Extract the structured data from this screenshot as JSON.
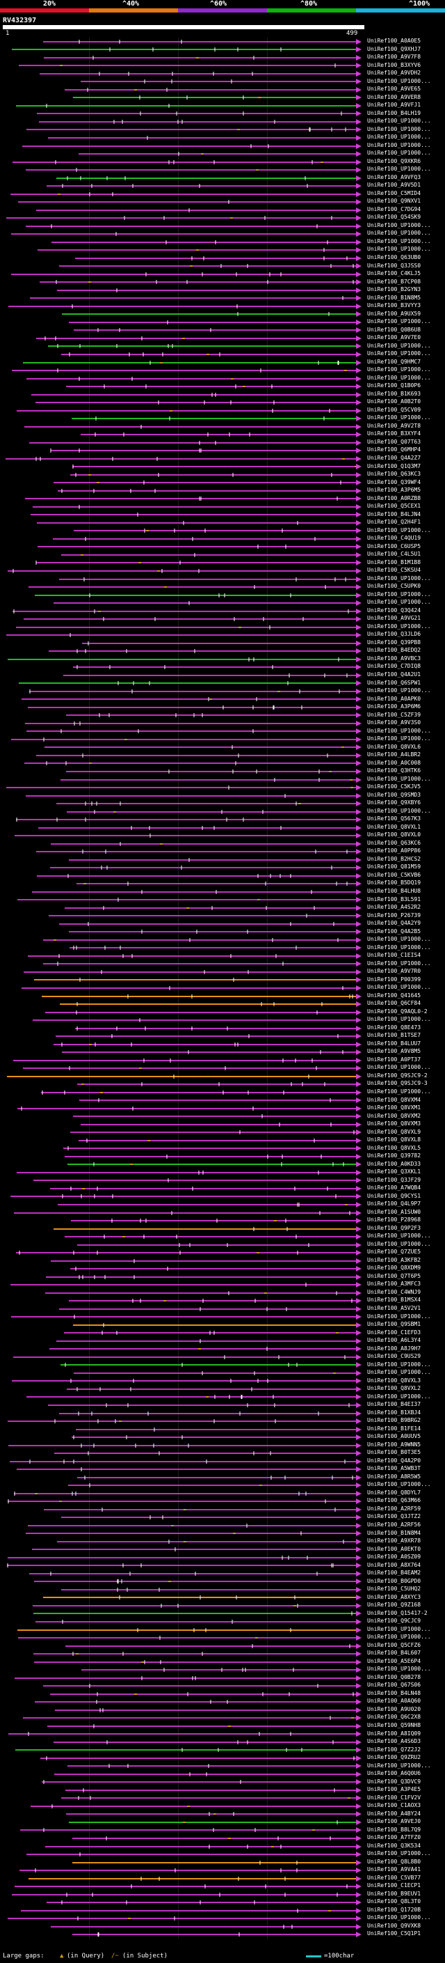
{
  "query_id": "RV432397",
  "coord_start": "1",
  "coord_end": "499",
  "identity_scale": {
    "labels": [
      "20%",
      "^40%",
      "^60%",
      "^80%",
      "^100%"
    ],
    "colors": [
      "#e0102a",
      "#e07a10",
      "#8e2ac8",
      "#10b010",
      "#18b4d8"
    ]
  },
  "hit_colors": {
    "magenta": "#c030c0",
    "green": "#22bb22",
    "orange": "#e89018",
    "gap": "#c8a000",
    "node": "#ffffff",
    "arrow": "#d040d0"
  },
  "legend": {
    "large_gaps": "Large gaps:",
    "query_gap": "(in Query)",
    "subject_gap": "(in Subject)",
    "scale": "=100char"
  },
  "hits": [
    {
      "label": "UniRef100_A0A0E5",
      "color": "magenta"
    },
    {
      "label": "UniRef100_Q9XHJ7",
      "color": "green"
    },
    {
      "label": "UniRef100_A9V7F8",
      "color": "magenta"
    },
    {
      "label": "UniRef100_B3XYV6",
      "color": "magenta"
    },
    {
      "label": "UniRef100_A9VDH2",
      "color": "magenta"
    },
    {
      "label": "UniRef100_UP1000...",
      "color": "magenta"
    },
    {
      "label": "UniRef100_A9VE65",
      "color": "magenta"
    },
    {
      "label": "UniRef100_A9VER8",
      "color": "green"
    },
    {
      "label": "UniRef100_A9VFJ1",
      "color": "green"
    },
    {
      "label": "UniRef100_B4LH19",
      "color": "magenta"
    },
    {
      "label": "UniRef100_UP1000...",
      "color": "magenta"
    },
    {
      "label": "UniRef100_UP1000...",
      "color": "magenta"
    },
    {
      "label": "UniRef100_UP1000...",
      "color": "magenta"
    },
    {
      "label": "UniRef100_UP1000...",
      "color": "magenta"
    },
    {
      "label": "UniRef100_UP1000...",
      "color": "magenta"
    },
    {
      "label": "UniRef100_Q9XKR6",
      "color": "magenta"
    },
    {
      "label": "UniRef100_UP1000...",
      "color": "magenta"
    },
    {
      "label": "UniRef100_A9VFQ3",
      "color": "green"
    },
    {
      "label": "UniRef100_A9V5D1",
      "color": "magenta"
    },
    {
      "label": "UniRef100_C5MID4",
      "color": "magenta"
    },
    {
      "label": "UniRef100_Q9NXV1",
      "color": "magenta"
    },
    {
      "label": "UniRef100_C7DG94",
      "color": "magenta"
    },
    {
      "label": "UniRef100_Q54SK9",
      "color": "magenta"
    },
    {
      "label": "UniRef100_UP1000...",
      "color": "magenta"
    },
    {
      "label": "UniRef100_UP1000...",
      "color": "magenta"
    },
    {
      "label": "UniRef100_UP1000...",
      "color": "magenta"
    },
    {
      "label": "UniRef100_UP1000...",
      "color": "magenta"
    },
    {
      "label": "UniRef100_Q63UB0",
      "color": "magenta"
    },
    {
      "label": "UniRef100_Q3JSS0",
      "color": "magenta"
    },
    {
      "label": "UniRef100_C4KLJ5",
      "color": "magenta"
    },
    {
      "label": "UniRef100_B7CP08",
      "color": "magenta"
    },
    {
      "label": "UniRef100_B2GYN3",
      "color": "magenta"
    },
    {
      "label": "UniRef100_B1N8M5",
      "color": "magenta"
    },
    {
      "label": "UniRef100_B3VYY3",
      "color": "magenta"
    },
    {
      "label": "UniRef100_A9UX59",
      "color": "green"
    },
    {
      "label": "UniRef100_UP1000...",
      "color": "magenta"
    },
    {
      "label": "UniRef100_Q0B6U8",
      "color": "magenta"
    },
    {
      "label": "UniRef100_A9V7E0",
      "color": "magenta"
    },
    {
      "label": "UniRef100_UP1000...",
      "color": "green"
    },
    {
      "label": "UniRef100_UP1000...",
      "color": "magenta"
    },
    {
      "label": "UniRef100_Q9HMC7",
      "color": "green"
    },
    {
      "label": "UniRef100_UP1000...",
      "color": "magenta"
    },
    {
      "label": "UniRef100_UP1000...",
      "color": "magenta"
    },
    {
      "label": "UniRef100_Q1B0P6",
      "color": "magenta"
    },
    {
      "label": "UniRef100_B1K693",
      "color": "magenta"
    },
    {
      "label": "UniRef100_A0B2T0",
      "color": "magenta"
    },
    {
      "label": "UniRef100_Q5CV09",
      "color": "magenta"
    },
    {
      "label": "UniRef100_UP1000...",
      "color": "green"
    },
    {
      "label": "UniRef100_A9V2T8",
      "color": "magenta"
    },
    {
      "label": "UniRef100_B3XYF4",
      "color": "magenta"
    },
    {
      "label": "UniRef100_Q07T63",
      "color": "magenta"
    },
    {
      "label": "UniRef100_Q6MHP4",
      "color": "magenta"
    },
    {
      "label": "UniRef100_Q4A2Z7",
      "color": "magenta"
    },
    {
      "label": "UniRef100_Q1Q3M7",
      "color": "magenta"
    },
    {
      "label": "UniRef100_Q63KC3",
      "color": "magenta"
    },
    {
      "label": "UniRef100_Q39WF4",
      "color": "magenta"
    },
    {
      "label": "UniRef100_A3P6M5",
      "color": "magenta"
    },
    {
      "label": "UniRef100_A0RZB8",
      "color": "magenta"
    },
    {
      "label": "UniRef100_Q5CEX1",
      "color": "magenta"
    },
    {
      "label": "UniRef100_B4LJN4",
      "color": "magenta"
    },
    {
      "label": "UniRef100_Q2H4F1",
      "color": "magenta"
    },
    {
      "label": "UniRef100_UP1000...",
      "color": "magenta"
    },
    {
      "label": "UniRef100_C4QU19",
      "color": "magenta"
    },
    {
      "label": "UniRef100_C6USP5",
      "color": "magenta"
    },
    {
      "label": "UniRef100_C4L5U1",
      "color": "magenta"
    },
    {
      "label": "UniRef100_B1M1B8",
      "color": "magenta"
    },
    {
      "label": "UniRef100_C5KSU4",
      "color": "magenta"
    },
    {
      "label": "UniRef100_UP1000...",
      "color": "magenta"
    },
    {
      "label": "UniRef100_C5UPK0",
      "color": "magenta"
    },
    {
      "label": "UniRef100_UP1000...",
      "color": "green"
    },
    {
      "label": "UniRef100_UP1000...",
      "color": "magenta"
    },
    {
      "label": "UniRef100_Q3Q424",
      "color": "magenta"
    },
    {
      "label": "UniRef100_A9VG21",
      "color": "magenta"
    },
    {
      "label": "UniRef100_UP1000...",
      "color": "magenta"
    },
    {
      "label": "UniRef100_Q3JLD6",
      "color": "magenta"
    },
    {
      "label": "UniRef100_Q39PB8",
      "color": "magenta"
    },
    {
      "label": "UniRef100_B4EDQ2",
      "color": "magenta"
    },
    {
      "label": "UniRef100_A9VBC3",
      "color": "green"
    },
    {
      "label": "UniRef100_C7DIQ8",
      "color": "magenta"
    },
    {
      "label": "UniRef100_Q4A2U1",
      "color": "magenta"
    },
    {
      "label": "UniRef100_Q6SPW1",
      "color": "green"
    },
    {
      "label": "UniRef100_UP1000...",
      "color": "magenta"
    },
    {
      "label": "UniRef100_A0APK0",
      "color": "magenta"
    },
    {
      "label": "UniRef100_A3P6M6",
      "color": "magenta"
    },
    {
      "label": "UniRef100_C5ZF39",
      "color": "magenta"
    },
    {
      "label": "UniRef100_A9V3S0",
      "color": "magenta"
    },
    {
      "label": "UniRef100_UP1000...",
      "color": "magenta"
    },
    {
      "label": "UniRef100_UP1000...",
      "color": "magenta"
    },
    {
      "label": "UniRef100_Q8VXL6",
      "color": "magenta"
    },
    {
      "label": "UniRef100_A4LBR2",
      "color": "magenta"
    },
    {
      "label": "UniRef100_A0C008",
      "color": "magenta"
    },
    {
      "label": "UniRef100_Q3HTK6",
      "color": "magenta"
    },
    {
      "label": "UniRef100_UP1000...",
      "color": "magenta"
    },
    {
      "label": "UniRef100_C5KJV5",
      "color": "magenta"
    },
    {
      "label": "UniRef100_Q9SMD3",
      "color": "magenta"
    },
    {
      "label": "UniRef100_Q9XBY6",
      "color": "magenta"
    },
    {
      "label": "UniRef100_UP1000...",
      "color": "magenta"
    },
    {
      "label": "UniRef100_Q567K3",
      "color": "magenta"
    },
    {
      "label": "UniRef100_Q8VXL1",
      "color": "magenta"
    },
    {
      "label": "UniRef100_Q8VXL0",
      "color": "magenta"
    },
    {
      "label": "UniRef100_Q63KC6",
      "color": "magenta"
    },
    {
      "label": "UniRef100_A0PP86",
      "color": "magenta"
    },
    {
      "label": "UniRef100_B2HCS2",
      "color": "magenta"
    },
    {
      "label": "UniRef100_Q81M59",
      "color": "magenta"
    },
    {
      "label": "UniRef100_C5KVB6",
      "color": "magenta"
    },
    {
      "label": "UniRef100_B5DQ19",
      "color": "magenta"
    },
    {
      "label": "UniRef100_B4LHU8",
      "color": "magenta"
    },
    {
      "label": "UniRef100_B3L591",
      "color": "magenta"
    },
    {
      "label": "UniRef100_A4S2R2",
      "color": "magenta"
    },
    {
      "label": "UniRef100_P26739",
      "color": "magenta"
    },
    {
      "label": "UniRef100_Q4A2Y9",
      "color": "magenta"
    },
    {
      "label": "UniRef100_Q4A2B5",
      "color": "magenta"
    },
    {
      "label": "UniRef100_UP1000...",
      "color": "magenta"
    },
    {
      "label": "UniRef100_UP1000...",
      "color": "magenta"
    },
    {
      "label": "UniRef100_C1EIS4",
      "color": "magenta"
    },
    {
      "label": "UniRef100_UP1000...",
      "color": "magenta"
    },
    {
      "label": "UniRef100_A9V7R0",
      "color": "magenta"
    },
    {
      "label": "UniRef100_P00399",
      "color": "orange"
    },
    {
      "label": "UniRef100_UP1000...",
      "color": "magenta"
    },
    {
      "label": "UniRef100_Q41645",
      "color": "orange"
    },
    {
      "label": "UniRef100_Q6CF84",
      "color": "orange"
    },
    {
      "label": "UniRef100_Q9AQL0-2",
      "color": "magenta"
    },
    {
      "label": "UniRef100_UP1000...",
      "color": "magenta"
    },
    {
      "label": "UniRef100_Q8E473",
      "color": "magenta"
    },
    {
      "label": "UniRef100_B1TSE7",
      "color": "magenta"
    },
    {
      "label": "UniRef100_B4LUU7",
      "color": "magenta"
    },
    {
      "label": "UniRef100_A9V8M5",
      "color": "magenta"
    },
    {
      "label": "UniRef100_A0PT37",
      "color": "magenta"
    },
    {
      "label": "UniRef100_UP1000...",
      "color": "magenta"
    },
    {
      "label": "UniRef100_Q9SJC9-2",
      "color": "orange"
    },
    {
      "label": "UniRef100_Q9SJC9-3",
      "color": "magenta"
    },
    {
      "label": "UniRef100_UP1000...",
      "color": "magenta"
    },
    {
      "label": "UniRef100_Q8VXM4",
      "color": "magenta"
    },
    {
      "label": "UniRef100_Q8VXM1",
      "color": "magenta"
    },
    {
      "label": "UniRef100_Q8VXM2",
      "color": "magenta"
    },
    {
      "label": "UniRef100_Q8VXM3",
      "color": "magenta"
    },
    {
      "label": "UniRef100_Q8VXL9",
      "color": "magenta"
    },
    {
      "label": "UniRef100_Q8VXL8",
      "color": "magenta"
    },
    {
      "label": "UniRef100_Q8VXL5",
      "color": "magenta"
    },
    {
      "label": "UniRef100_Q39782",
      "color": "magenta"
    },
    {
      "label": "UniRef100_A0KD33",
      "color": "green"
    },
    {
      "label": "UniRef100_Q3XKL1",
      "color": "magenta"
    },
    {
      "label": "UniRef100_Q3JF29",
      "color": "magenta"
    },
    {
      "label": "UniRef100_A7WQB4",
      "color": "magenta"
    },
    {
      "label": "UniRef100_Q9CYS1",
      "color": "magenta"
    },
    {
      "label": "UniRef100_Q4L9P7",
      "color": "magenta"
    },
    {
      "label": "UniRef100_A1SUW0",
      "color": "magenta"
    },
    {
      "label": "UniRef100_P28968",
      "color": "magenta"
    },
    {
      "label": "UniRef100_Q9P2F3",
      "color": "orange"
    },
    {
      "label": "UniRef100_UP1000...",
      "color": "magenta"
    },
    {
      "label": "UniRef100_UP1000...",
      "color": "magenta"
    },
    {
      "label": "UniRef100_Q7ZUE5",
      "color": "magenta"
    },
    {
      "label": "UniRef100_A3KFB2",
      "color": "magenta"
    },
    {
      "label": "UniRef100_Q8XDM9",
      "color": "magenta"
    },
    {
      "label": "UniRef100_Q7T6P5",
      "color": "magenta"
    },
    {
      "label": "UniRef100_A3MFC3",
      "color": "magenta"
    },
    {
      "label": "UniRef100_C4WNJ9",
      "color": "magenta"
    },
    {
      "label": "UniRef100_B1MSX4",
      "color": "magenta"
    },
    {
      "label": "UniRef100_A5V2V1",
      "color": "magenta"
    },
    {
      "label": "UniRef100_UP1000...",
      "color": "magenta"
    },
    {
      "label": "UniRef100_Q9SBM1",
      "color": "orange"
    },
    {
      "label": "UniRef100_C1EFD3",
      "color": "magenta"
    },
    {
      "label": "UniRef100_A6L3Y4",
      "color": "magenta"
    },
    {
      "label": "UniRef100_A8J9H7",
      "color": "magenta"
    },
    {
      "label": "UniRef100_C9US29",
      "color": "magenta"
    },
    {
      "label": "UniRef100_UP1000...",
      "color": "green"
    },
    {
      "label": "UniRef100_UP1000...",
      "color": "magenta"
    },
    {
      "label": "UniRef100_Q8VXL3",
      "color": "magenta"
    },
    {
      "label": "UniRef100_Q8VXL2",
      "color": "magenta"
    },
    {
      "label": "UniRef100_UP1000...",
      "color": "magenta"
    },
    {
      "label": "UniRef100_B4EI37",
      "color": "magenta"
    },
    {
      "label": "UniRef100_B1XBJ4",
      "color": "magenta"
    },
    {
      "label": "UniRef100_B9BRG2",
      "color": "magenta"
    },
    {
      "label": "UniRef100_B1FE14",
      "color": "magenta"
    },
    {
      "label": "UniRef100_A0UUV5",
      "color": "magenta"
    },
    {
      "label": "UniRef100_A9WNN5",
      "color": "magenta"
    },
    {
      "label": "UniRef100_B0T3E5",
      "color": "magenta"
    },
    {
      "label": "UniRef100_Q4A2P0",
      "color": "magenta"
    },
    {
      "label": "UniRef100_A5WB3T",
      "color": "magenta"
    },
    {
      "label": "UniRef100_A8R5W5",
      "color": "magenta"
    },
    {
      "label": "UniRef100_UP1000...",
      "color": "magenta"
    },
    {
      "label": "UniRef100_Q8DYL7",
      "color": "magenta"
    },
    {
      "label": "UniRef100_Q63M66",
      "color": "magenta"
    },
    {
      "label": "UniRef100_A2RF59",
      "color": "magenta"
    },
    {
      "label": "UniRef100_Q3JTZ2",
      "color": "magenta"
    },
    {
      "label": "UniRef100_A2RF56",
      "color": "magenta"
    },
    {
      "label": "UniRef100_B1N8M4",
      "color": "magenta"
    },
    {
      "label": "UniRef100_A9XR78",
      "color": "magenta"
    },
    {
      "label": "UniRef100_A0EKT0",
      "color": "magenta"
    },
    {
      "label": "UniRef100_A0SZ09",
      "color": "magenta"
    },
    {
      "label": "UniRef100_A8X764",
      "color": "magenta"
    },
    {
      "label": "UniRef100_B4EAM2",
      "color": "magenta"
    },
    {
      "label": "UniRef100_B0GPD0",
      "color": "magenta"
    },
    {
      "label": "UniRef100_C5UHQ2",
      "color": "magenta"
    },
    {
      "label": "UniRef100_A8XYC3",
      "color": "orange"
    },
    {
      "label": "UniRef100_Q9Z168",
      "color": "magenta"
    },
    {
      "label": "UniRef100_Q15417-2",
      "color": "green"
    },
    {
      "label": "UniRef100_Q9CJC9",
      "color": "magenta"
    },
    {
      "label": "UniRef100_UP1000...",
      "color": "orange"
    },
    {
      "label": "UniRef100_UP1000...",
      "color": "magenta"
    },
    {
      "label": "UniRef100_Q5CFZ6",
      "color": "magenta"
    },
    {
      "label": "UniRef100_B4L607",
      "color": "magenta"
    },
    {
      "label": "UniRef100_A5E6P4",
      "color": "magenta"
    },
    {
      "label": "UniRef100_UP1000...",
      "color": "magenta"
    },
    {
      "label": "UniRef100_Q0B278",
      "color": "magenta"
    },
    {
      "label": "UniRef100_Q67S06",
      "color": "magenta"
    },
    {
      "label": "UniRef100_B4LN48",
      "color": "magenta"
    },
    {
      "label": "UniRef100_A0AQ60",
      "color": "magenta"
    },
    {
      "label": "UniRef100_A9U020",
      "color": "magenta"
    },
    {
      "label": "UniRef100_Q6C2X8",
      "color": "magenta"
    },
    {
      "label": "UniRef100_Q59NH8",
      "color": "magenta"
    },
    {
      "label": "UniRef100_A8IQ09",
      "color": "magenta"
    },
    {
      "label": "UniRef100_A4S6D3",
      "color": "magenta"
    },
    {
      "label": "UniRef100_Q7Z2J2",
      "color": "green"
    },
    {
      "label": "UniRef100_Q9ZRU2",
      "color": "magenta"
    },
    {
      "label": "UniRef100_UP1000...",
      "color": "magenta"
    },
    {
      "label": "UniRef100_A6Q0U6",
      "color": "magenta"
    },
    {
      "label": "UniRef100_Q3DVC9",
      "color": "magenta"
    },
    {
      "label": "UniRef100_A3P4E5",
      "color": "magenta"
    },
    {
      "label": "UniRef100_C1FV2V",
      "color": "magenta"
    },
    {
      "label": "UniRef100_C1AOX3",
      "color": "magenta"
    },
    {
      "label": "UniRef100_A4BY24",
      "color": "magenta"
    },
    {
      "label": "UniRef100_A9VEJ0",
      "color": "green"
    },
    {
      "label": "UniRef100_B8L7Q9",
      "color": "magenta"
    },
    {
      "label": "UniRef100_A7TFZ0",
      "color": "magenta"
    },
    {
      "label": "UniRef100_Q3K534",
      "color": "magenta"
    },
    {
      "label": "UniRef100_UP1000...",
      "color": "magenta"
    },
    {
      "label": "UniRef100_Q8L8B0",
      "color": "orange"
    },
    {
      "label": "UniRef100_A9VA41",
      "color": "magenta"
    },
    {
      "label": "UniRef100_C5VB77",
      "color": "orange"
    },
    {
      "label": "UniRef100_C1ECP1",
      "color": "magenta"
    },
    {
      "label": "UniRef100_B9EUV1",
      "color": "magenta"
    },
    {
      "label": "UniRef100_Q8L3T0",
      "color": "magenta"
    },
    {
      "label": "UniRef100_Q1720B",
      "color": "magenta"
    },
    {
      "label": "UniRef100_UP1000...",
      "color": "magenta"
    },
    {
      "label": "UniRef100_Q9VXK8",
      "color": "magenta"
    },
    {
      "label": "UniRef100_C5Q1P1",
      "color": "magenta"
    }
  ]
}
